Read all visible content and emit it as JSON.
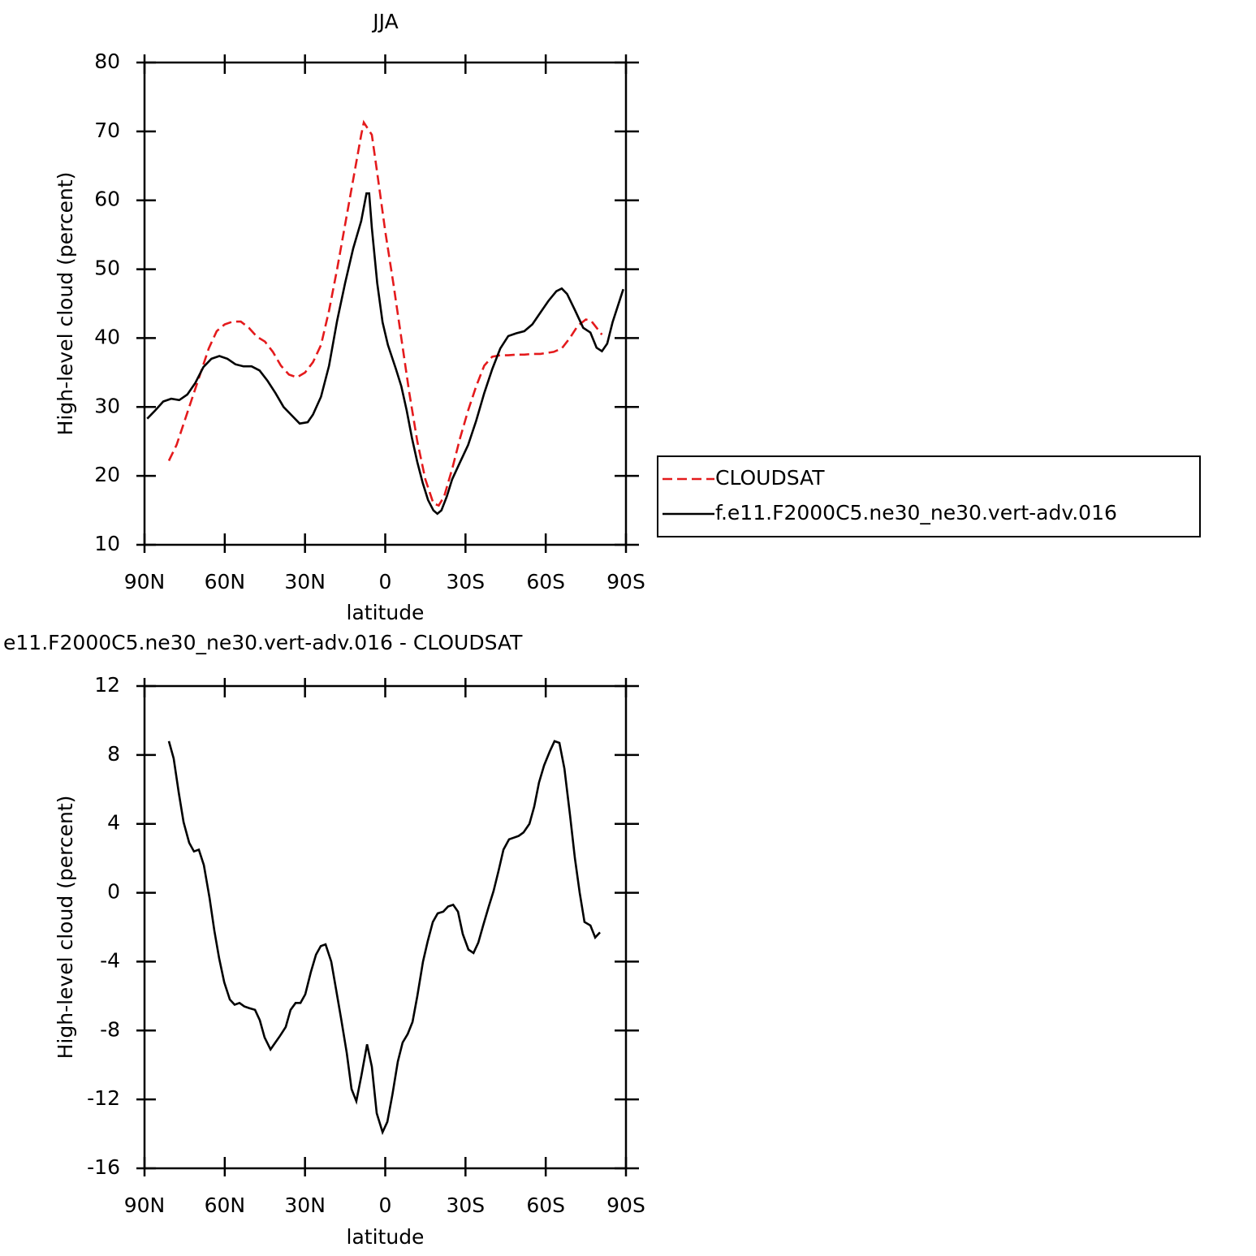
{
  "chart_data": [
    {
      "type": "line",
      "title": "JJA",
      "xlabel": "latitude",
      "ylabel": "High-level cloud (percent)",
      "xlim": [
        90,
        -90
      ],
      "xticks": [
        {
          "value": 90,
          "label": "90N"
        },
        {
          "value": 60,
          "label": "60N"
        },
        {
          "value": 30,
          "label": "30N"
        },
        0,
        {
          "value": -30,
          "label": "30S"
        },
        {
          "value": -60,
          "label": "60S"
        },
        {
          "value": -90,
          "label": "90S"
        }
      ],
      "ylim": [
        10,
        80
      ],
      "yticks": [
        10,
        20,
        30,
        40,
        50,
        60,
        70,
        80
      ],
      "legend": "right",
      "series": [
        {
          "name": "CLOUDSAT",
          "color": "#e41a1c",
          "style": "dashed",
          "x": [
            80.9,
            78,
            75,
            72,
            69,
            66,
            63,
            60,
            57,
            54,
            51,
            48,
            45,
            42,
            39,
            36,
            33,
            30,
            27,
            24,
            21,
            18,
            15,
            12,
            9,
            8,
            5,
            3,
            0,
            -3,
            -6,
            -9,
            -12,
            -15,
            -18,
            -20,
            -22,
            -25,
            -28,
            -31,
            -34,
            -37,
            -40,
            -43,
            -46,
            -49,
            -52,
            -55,
            -58,
            -63,
            -66,
            -69,
            -72,
            -75,
            -77,
            -79,
            -81
          ],
          "values": [
            22.2,
            24.5,
            28,
            31.5,
            35,
            38.5,
            41,
            42,
            42.4,
            42.4,
            41.5,
            40.2,
            39.5,
            38,
            36,
            34.7,
            34.3,
            35,
            36.5,
            39,
            44,
            50,
            56.5,
            63,
            69.5,
            71.3,
            69.5,
            64,
            55.5,
            48,
            40,
            32,
            25,
            19.5,
            16,
            15.7,
            17,
            21,
            25.5,
            29.5,
            33,
            36,
            37.3,
            37.5,
            37.5,
            37.6,
            37.6,
            37.7,
            37.7,
            38,
            38.5,
            40,
            41.8,
            42.7,
            42.5,
            41.5,
            40.5
          ]
        },
        {
          "name": "f.e11.F2000C5.ne30_ne30.vert-adv.016",
          "color": "#000000",
          "style": "solid",
          "x": [
            89,
            86,
            83,
            80,
            77,
            74,
            71,
            68,
            65,
            62,
            59,
            56,
            53,
            50,
            47,
            44,
            41,
            38,
            35,
            32,
            29,
            27,
            24,
            21,
            18,
            15,
            12,
            9,
            7,
            6,
            5,
            3,
            1,
            -1,
            -4,
            -6,
            -8,
            -10,
            -12,
            -14,
            -16,
            -18,
            -19.5,
            -21,
            -23,
            -25,
            -28,
            -31,
            -34,
            -37,
            -40,
            -43,
            -46,
            -49,
            -52,
            -55,
            -58,
            -61,
            -64,
            -66,
            -68,
            -71,
            -74,
            -76.7,
            -79,
            -81,
            -83,
            -85,
            -89
          ],
          "values": [
            28.3,
            29.5,
            30.8,
            31.2,
            31,
            31.8,
            33.5,
            35.8,
            37,
            37.4,
            37,
            36.2,
            35.9,
            35.9,
            35.3,
            33.8,
            32,
            30,
            28.8,
            27.6,
            27.8,
            28.9,
            31.5,
            36,
            42.5,
            48,
            53,
            57,
            61,
            61,
            56,
            48,
            42.3,
            39,
            35.5,
            33,
            29.5,
            25.5,
            22,
            19,
            16.5,
            15,
            14.5,
            15,
            17,
            19.5,
            22,
            24.5,
            28,
            32,
            35.5,
            38.5,
            40.3,
            40.7,
            41,
            42,
            43.7,
            45.4,
            46.8,
            47.2,
            46.4,
            44,
            41.5,
            40.8,
            38.6,
            38.1,
            39.2,
            42.3,
            47.1
          ]
        }
      ]
    },
    {
      "type": "line",
      "title": "e11.F2000C5.ne30_ne30.vert-adv.016 - CLOUDSAT",
      "xlabel": "latitude",
      "ylabel": "High-level cloud (percent)",
      "xlim": [
        90,
        -90
      ],
      "xticks": [
        {
          "value": 90,
          "label": "90N"
        },
        {
          "value": 60,
          "label": "60N"
        },
        {
          "value": 30,
          "label": "30N"
        },
        0,
        {
          "value": -30,
          "label": "30S"
        },
        {
          "value": -60,
          "label": "60S"
        },
        {
          "value": -90,
          "label": "90S"
        }
      ],
      "ylim": [
        -16,
        12
      ],
      "yticks": [
        -16,
        -12,
        -8,
        -4,
        0,
        4,
        8,
        12
      ],
      "series": [
        {
          "color": "#000000",
          "style": "solid",
          "x": [
            80.9,
            79.1,
            77.2,
            75.4,
            73.3,
            71.5,
            69.7,
            67.8,
            65.7,
            63.9,
            62.1,
            60.2,
            58.1,
            56.3,
            54.5,
            52.7,
            50.8,
            48.7,
            46.9,
            45.1,
            42.9,
            41.1,
            39.3,
            37.2,
            35.4,
            33.5,
            31.7,
            29.9,
            27.8,
            25.9,
            24.1,
            22.3,
            20.2,
            18.4,
            16.5,
            14.4,
            12.6,
            10.8,
            8.9,
            6.8,
            5,
            3.2,
            1,
            -0.8,
            -2.7,
            -4.7,
            -6.5,
            -8.4,
            -10.2,
            -12,
            -14.1,
            -15.9,
            -17.8,
            -19.6,
            -21.7,
            -23.5,
            -25.4,
            -27.2,
            -29,
            -31.1,
            -33,
            -34.8,
            -36.6,
            -38.7,
            -40.5,
            -42.4,
            -44.2,
            -46.3,
            -48.1,
            -49.9,
            -51.7,
            -53.9,
            -55.7,
            -57.5,
            -59.4,
            -61.5,
            -63.3,
            -65.1,
            -67,
            -69.1,
            -70.9,
            -72.7,
            -74.5,
            -76.7,
            -78.5,
            -80.3
          ],
          "values": [
            8.8,
            7.8,
            5.8,
            4.1,
            2.9,
            2.4,
            2.5,
            1.6,
            -0.3,
            -2.2,
            -3.8,
            -5.2,
            -6.2,
            -6.5,
            -6.4,
            -6.6,
            -6.7,
            -6.8,
            -7.4,
            -8.4,
            -9.1,
            -8.7,
            -8.3,
            -7.8,
            -6.8,
            -6.4,
            -6.4,
            -5.9,
            -4.6,
            -3.6,
            -3.1,
            -3,
            -4,
            -5.6,
            -7.3,
            -9.3,
            -11.4,
            -12.1,
            -10.6,
            -8.8,
            -10.1,
            -12.8,
            -13.9,
            -13.3,
            -11.7,
            -9.8,
            -8.7,
            -8.2,
            -7.5,
            -6,
            -4,
            -2.8,
            -1.7,
            -1.2,
            -1.1,
            -0.8,
            -0.7,
            -1.1,
            -2.4,
            -3.3,
            -3.5,
            -2.9,
            -1.9,
            -0.8,
            0.1,
            1.3,
            2.5,
            3.1,
            3.2,
            3.3,
            3.5,
            4,
            5,
            6.4,
            7.4,
            8.2,
            8.8,
            8.7,
            7.2,
            4.5,
            2,
            0,
            -1.7,
            -1.9,
            -2.6,
            -2.3
          ]
        }
      ]
    }
  ]
}
